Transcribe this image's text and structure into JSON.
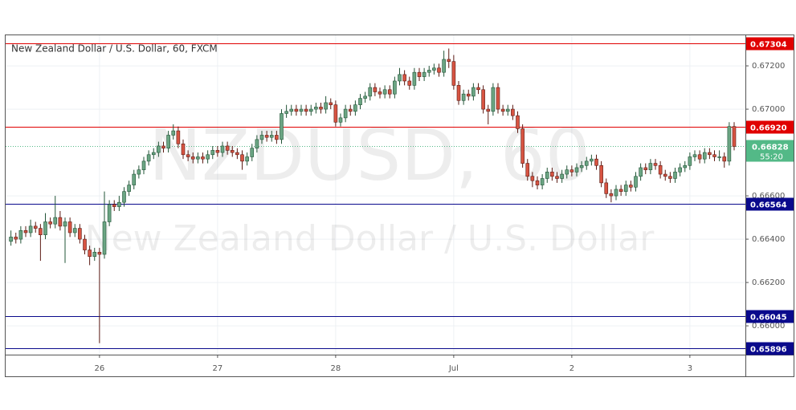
{
  "chart_data": {
    "type": "candlestick",
    "title": "New Zealand Dollar / U.S. Dollar, 60, FXCM",
    "watermark": [
      "NZDUSD, 60",
      "New Zealand Dollar / U.S. Dollar"
    ],
    "categories": [
      null,
      null,
      null,
      null,
      null,
      null,
      null,
      null,
      null,
      null,
      null,
      null,
      null,
      null,
      null,
      null,
      null,
      null,
      null,
      "26",
      null,
      null,
      null,
      null,
      null,
      null,
      null,
      null,
      null,
      null,
      null,
      null,
      null,
      null,
      null,
      null,
      null,
      null,
      null,
      null,
      null,
      null,
      null,
      "27",
      null,
      null,
      null,
      null,
      null,
      null,
      null,
      null,
      null,
      null,
      null,
      null,
      null,
      null,
      null,
      null,
      null,
      null,
      null,
      null,
      null,
      null,
      null,
      "28",
      null,
      null,
      null,
      null,
      null,
      null,
      null,
      null,
      null,
      null,
      null,
      null,
      null,
      null,
      null,
      null,
      null,
      null,
      null,
      null,
      null,
      null,
      null,
      "Jul",
      null,
      null,
      null,
      null,
      null,
      null,
      null,
      null,
      null,
      null,
      null,
      null,
      null,
      null,
      null,
      null,
      null,
      null,
      null,
      null,
      null,
      null,
      null,
      "2",
      null,
      null,
      null,
      null,
      null,
      null,
      null,
      null,
      null,
      null,
      null,
      null,
      null,
      null,
      null,
      null,
      null,
      null,
      null,
      null,
      null,
      null,
      null,
      "3",
      null,
      null,
      null,
      null,
      null,
      null,
      null,
      null,
      null
    ],
    "ohlc": [
      [
        0.6642,
        0.6645,
        0.6636,
        0.6639
      ],
      [
        0.6639,
        0.6644,
        0.6637,
        0.6641
      ],
      [
        0.6641,
        0.6643,
        0.6638,
        0.664
      ],
      [
        0.664,
        0.6646,
        0.6638,
        0.6644
      ],
      [
        0.6644,
        0.6646,
        0.6641,
        0.6643
      ],
      [
        0.6643,
        0.6649,
        0.6641,
        0.6646
      ],
      [
        0.6646,
        0.6648,
        0.6643,
        0.6645
      ],
      [
        0.6645,
        0.6647,
        0.663,
        0.6642
      ],
      [
        0.6642,
        0.6652,
        0.664,
        0.6648
      ],
      [
        0.6648,
        0.665,
        0.6645,
        0.6647
      ],
      [
        0.6647,
        0.666,
        0.6645,
        0.665
      ],
      [
        0.665,
        0.6653,
        0.6644,
        0.6646
      ],
      [
        0.6646,
        0.665,
        0.6629,
        0.6648
      ],
      [
        0.6648,
        0.665,
        0.6641,
        0.6643
      ],
      [
        0.6643,
        0.6647,
        0.6641,
        0.6645
      ],
      [
        0.6645,
        0.6647,
        0.6638,
        0.664
      ],
      [
        0.664,
        0.6642,
        0.6633,
        0.6635
      ],
      [
        0.6635,
        0.6637,
        0.6628,
        0.6632
      ],
      [
        0.6632,
        0.6636,
        0.663,
        0.6634
      ],
      [
        0.6634,
        0.6636,
        0.6592,
        0.6633
      ],
      [
        0.6633,
        0.6662,
        0.6631,
        0.6648
      ],
      [
        0.6648,
        0.6658,
        0.6646,
        0.6656
      ],
      [
        0.6656,
        0.6658,
        0.6653,
        0.6655
      ],
      [
        0.6655,
        0.666,
        0.6653,
        0.6657
      ],
      [
        0.6657,
        0.6664,
        0.6655,
        0.6662
      ],
      [
        0.6662,
        0.6667,
        0.666,
        0.6665
      ],
      [
        0.6665,
        0.6672,
        0.6663,
        0.667
      ],
      [
        0.667,
        0.6674,
        0.6668,
        0.6672
      ],
      [
        0.6672,
        0.6678,
        0.667,
        0.6676
      ],
      [
        0.6676,
        0.6681,
        0.6674,
        0.6679
      ],
      [
        0.6679,
        0.6682,
        0.6677,
        0.668
      ],
      [
        0.668,
        0.6685,
        0.6678,
        0.6683
      ],
      [
        0.6683,
        0.6685,
        0.668,
        0.6682
      ],
      [
        0.6682,
        0.669,
        0.668,
        0.6688
      ],
      [
        0.6688,
        0.6693,
        0.6686,
        0.669
      ],
      [
        0.669,
        0.6692,
        0.6682,
        0.6684
      ],
      [
        0.6684,
        0.6686,
        0.6677,
        0.6679
      ],
      [
        0.6679,
        0.6681,
        0.6676,
        0.6678
      ],
      [
        0.6678,
        0.668,
        0.6675,
        0.6677
      ],
      [
        0.6677,
        0.668,
        0.6675,
        0.6678
      ],
      [
        0.6678,
        0.668,
        0.6675,
        0.6677
      ],
      [
        0.6677,
        0.6681,
        0.6675,
        0.6679
      ],
      [
        0.6679,
        0.6683,
        0.6677,
        0.6681
      ],
      [
        0.6681,
        0.6683,
        0.6678,
        0.668
      ],
      [
        0.668,
        0.6685,
        0.6678,
        0.6683
      ],
      [
        0.6683,
        0.6685,
        0.6679,
        0.6681
      ],
      [
        0.6681,
        0.6683,
        0.6678,
        0.668
      ],
      [
        0.668,
        0.6682,
        0.6677,
        0.6679
      ],
      [
        0.6679,
        0.6681,
        0.6672,
        0.6676
      ],
      [
        0.6676,
        0.668,
        0.6674,
        0.6678
      ],
      [
        0.6678,
        0.6684,
        0.6676,
        0.6682
      ],
      [
        0.6682,
        0.6688,
        0.668,
        0.6686
      ],
      [
        0.6686,
        0.669,
        0.6684,
        0.6688
      ],
      [
        0.6688,
        0.669,
        0.6685,
        0.6687
      ],
      [
        0.6687,
        0.669,
        0.6685,
        0.6688
      ],
      [
        0.6688,
        0.669,
        0.6684,
        0.6686
      ],
      [
        0.6686,
        0.67,
        0.6684,
        0.6698
      ],
      [
        0.6698,
        0.6702,
        0.6696,
        0.6699
      ],
      [
        0.6699,
        0.6702,
        0.6697,
        0.67
      ],
      [
        0.67,
        0.6702,
        0.6697,
        0.6699
      ],
      [
        0.6699,
        0.6702,
        0.6697,
        0.67
      ],
      [
        0.67,
        0.6702,
        0.6697,
        0.6699
      ],
      [
        0.6699,
        0.6702,
        0.6697,
        0.67
      ],
      [
        0.67,
        0.6703,
        0.6698,
        0.6701
      ],
      [
        0.6701,
        0.6703,
        0.6698,
        0.67
      ],
      [
        0.67,
        0.6706,
        0.6698,
        0.6703
      ],
      [
        0.6703,
        0.6705,
        0.67,
        0.6702
      ],
      [
        0.6702,
        0.6704,
        0.6692,
        0.6694
      ],
      [
        0.6694,
        0.6698,
        0.6692,
        0.6696
      ],
      [
        0.6696,
        0.6702,
        0.6694,
        0.67
      ],
      [
        0.67,
        0.6702,
        0.6697,
        0.6699
      ],
      [
        0.6699,
        0.6704,
        0.6697,
        0.6702
      ],
      [
        0.6702,
        0.6707,
        0.67,
        0.6705
      ],
      [
        0.6705,
        0.6708,
        0.6703,
        0.6706
      ],
      [
        0.6706,
        0.6712,
        0.6704,
        0.671
      ],
      [
        0.671,
        0.6712,
        0.6706,
        0.6708
      ],
      [
        0.6708,
        0.671,
        0.6705,
        0.6707
      ],
      [
        0.6707,
        0.6711,
        0.6705,
        0.6709
      ],
      [
        0.6709,
        0.6711,
        0.6705,
        0.6707
      ],
      [
        0.6707,
        0.6715,
        0.6705,
        0.6713
      ],
      [
        0.6713,
        0.6719,
        0.6711,
        0.6716
      ],
      [
        0.6716,
        0.6718,
        0.6711,
        0.6713
      ],
      [
        0.6713,
        0.6715,
        0.6709,
        0.6711
      ],
      [
        0.6711,
        0.6719,
        0.6709,
        0.6717
      ],
      [
        0.6717,
        0.6719,
        0.6713,
        0.6715
      ],
      [
        0.6715,
        0.6719,
        0.6713,
        0.6717
      ],
      [
        0.6717,
        0.672,
        0.6715,
        0.6718
      ],
      [
        0.6718,
        0.6721,
        0.6716,
        0.6719
      ],
      [
        0.6719,
        0.6721,
        0.6715,
        0.6717
      ],
      [
        0.6717,
        0.6727,
        0.6715,
        0.6723
      ],
      [
        0.6723,
        0.6728,
        0.6719,
        0.6722
      ],
      [
        0.6722,
        0.6725,
        0.6709,
        0.6711
      ],
      [
        0.6711,
        0.6713,
        0.6702,
        0.6704
      ],
      [
        0.6704,
        0.6709,
        0.6702,
        0.6707
      ],
      [
        0.6707,
        0.6709,
        0.6704,
        0.6706
      ],
      [
        0.6706,
        0.6712,
        0.6704,
        0.671
      ],
      [
        0.671,
        0.6712,
        0.6707,
        0.6709
      ],
      [
        0.6709,
        0.6711,
        0.6698,
        0.67
      ],
      [
        0.67,
        0.6702,
        0.6693,
        0.6699
      ],
      [
        0.6699,
        0.6712,
        0.6697,
        0.671
      ],
      [
        0.671,
        0.6712,
        0.6698,
        0.67
      ],
      [
        0.67,
        0.6702,
        0.6697,
        0.6699
      ],
      [
        0.6699,
        0.6702,
        0.6697,
        0.67
      ],
      [
        0.67,
        0.6702,
        0.6695,
        0.6697
      ],
      [
        0.6697,
        0.6699,
        0.6689,
        0.6691
      ],
      [
        0.6691,
        0.6693,
        0.6673,
        0.6675
      ],
      [
        0.6675,
        0.6677,
        0.6667,
        0.6669
      ],
      [
        0.6669,
        0.6671,
        0.6664,
        0.6667
      ],
      [
        0.6667,
        0.6669,
        0.6663,
        0.6665
      ],
      [
        0.6665,
        0.667,
        0.6663,
        0.6668
      ],
      [
        0.6668,
        0.6673,
        0.6666,
        0.6671
      ],
      [
        0.6671,
        0.6673,
        0.6667,
        0.6669
      ],
      [
        0.6669,
        0.6671,
        0.6666,
        0.6668
      ],
      [
        0.6668,
        0.6672,
        0.6666,
        0.667
      ],
      [
        0.667,
        0.6674,
        0.6668,
        0.6672
      ],
      [
        0.6672,
        0.6674,
        0.6669,
        0.6671
      ],
      [
        0.6671,
        0.6675,
        0.6669,
        0.6673
      ],
      [
        0.6673,
        0.6676,
        0.6671,
        0.6674
      ],
      [
        0.6674,
        0.6678,
        0.6672,
        0.6676
      ],
      [
        0.6676,
        0.6679,
        0.6674,
        0.6677
      ],
      [
        0.6677,
        0.6679,
        0.6672,
        0.6674
      ],
      [
        0.6674,
        0.6676,
        0.6664,
        0.6666
      ],
      [
        0.6666,
        0.6668,
        0.6659,
        0.6661
      ],
      [
        0.6661,
        0.6663,
        0.6657,
        0.666
      ],
      [
        0.666,
        0.6665,
        0.6658,
        0.6663
      ],
      [
        0.6663,
        0.6665,
        0.666,
        0.6662
      ],
      [
        0.6662,
        0.6667,
        0.666,
        0.6665
      ],
      [
        0.6665,
        0.6667,
        0.6662,
        0.6664
      ],
      [
        0.6664,
        0.6671,
        0.6662,
        0.6669
      ],
      [
        0.6669,
        0.6675,
        0.6667,
        0.6673
      ],
      [
        0.6673,
        0.6675,
        0.667,
        0.6672
      ],
      [
        0.6672,
        0.6677,
        0.667,
        0.6675
      ],
      [
        0.6675,
        0.6677,
        0.6672,
        0.6674
      ],
      [
        0.6674,
        0.6676,
        0.6668,
        0.667
      ],
      [
        0.667,
        0.6672,
        0.6667,
        0.6669
      ],
      [
        0.6669,
        0.6671,
        0.6666,
        0.6668
      ],
      [
        0.6668,
        0.6673,
        0.6666,
        0.6671
      ],
      [
        0.6671,
        0.6675,
        0.6669,
        0.6673
      ],
      [
        0.6673,
        0.6676,
        0.6671,
        0.6674
      ],
      [
        0.6674,
        0.668,
        0.6672,
        0.6678
      ],
      [
        0.6678,
        0.6681,
        0.6676,
        0.6679
      ],
      [
        0.6679,
        0.6681,
        0.6675,
        0.6677
      ],
      [
        0.6677,
        0.6682,
        0.6675,
        0.668
      ],
      [
        0.668,
        0.6682,
        0.6677,
        0.6679
      ],
      [
        0.6679,
        0.6681,
        0.6676,
        0.6678
      ],
      [
        0.6678,
        0.6681,
        0.6676,
        0.6678
      ],
      [
        0.6678,
        0.668,
        0.6673,
        0.6676
      ],
      [
        0.6676,
        0.6694,
        0.6674,
        0.6692
      ],
      [
        0.6692,
        0.6694,
        0.6681,
        0.66828
      ]
    ],
    "up_color": "#6ba583",
    "down_color": "#d75442",
    "ylim": [
      0.65867,
      0.67341
    ],
    "yticks": [
      {
        "value": 0.672,
        "label": "0.67200"
      },
      {
        "value": 0.67,
        "label": "0.67000"
      },
      {
        "value": 0.666,
        "label": "0.66600"
      },
      {
        "value": 0.664,
        "label": "0.66400"
      },
      {
        "value": 0.662,
        "label": "0.66200"
      },
      {
        "value": 0.66,
        "label": "0.66000"
      }
    ],
    "grid": true,
    "levels": [
      {
        "value": 0.67304,
        "color": "#e00000"
      },
      {
        "value": 0.6692,
        "label": "0.66920",
        "color": "#e00000"
      },
      {
        "value": 0.66564,
        "color": "#0a0a8c"
      },
      {
        "value": 0.66045,
        "color": "#0a0a8c"
      },
      {
        "value": 0.65896,
        "color": "#0a0a8c"
      }
    ],
    "last_price": {
      "value": 0.66828,
      "color": "#53b987",
      "countdown": "55:20"
    }
  }
}
